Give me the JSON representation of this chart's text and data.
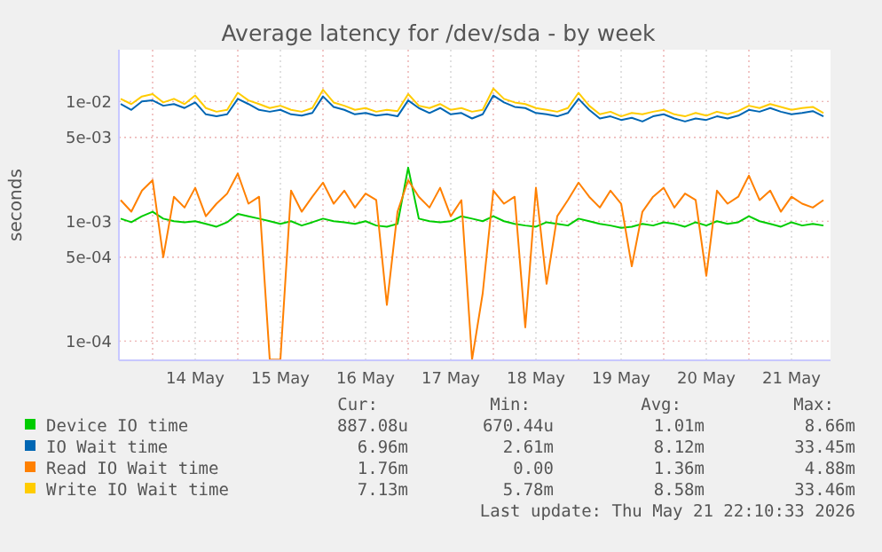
{
  "chart_data": {
    "type": "line",
    "title": "Average latency for /dev/sda - by week",
    "ylabel": "seconds",
    "log": "y",
    "grid": true,
    "legend": "bottom",
    "xlim": [
      "2026-05-13T14:30",
      "2026-05-21T23:00"
    ],
    "ylim": [
      6.9e-05,
      0.027
    ],
    "yticks": [
      {
        "value": 0.01,
        "label": "1e-02"
      },
      {
        "value": 0.005,
        "label": "5e-03"
      },
      {
        "value": 0.001,
        "label": "1e-03"
      },
      {
        "value": 0.0005,
        "label": "5e-04"
      },
      {
        "value": 0.0001,
        "label": "1e-04"
      }
    ],
    "xticks": [
      {
        "value": "2026-05-14T00:00",
        "label": null
      },
      {
        "value": "2026-05-14T12:00",
        "label": "14 May"
      },
      {
        "value": "2026-05-15T00:00",
        "label": null
      },
      {
        "value": "2026-05-15T12:00",
        "label": "15 May"
      },
      {
        "value": "2026-05-16T00:00",
        "label": null
      },
      {
        "value": "2026-05-16T12:00",
        "label": "16 May"
      },
      {
        "value": "2026-05-17T00:00",
        "label": null
      },
      {
        "value": "2026-05-17T12:00",
        "label": "17 May"
      },
      {
        "value": "2026-05-18T00:00",
        "label": null
      },
      {
        "value": "2026-05-18T12:00",
        "label": "18 May"
      },
      {
        "value": "2026-05-19T00:00",
        "label": null
      },
      {
        "value": "2026-05-19T12:00",
        "label": "19 May"
      },
      {
        "value": "2026-05-20T00:00",
        "label": null
      },
      {
        "value": "2026-05-20T12:00",
        "label": "20 May"
      },
      {
        "value": "2026-05-21T00:00",
        "label": null
      },
      {
        "value": "2026-05-21T12:00",
        "label": "21 May"
      }
    ],
    "x": [
      "2026-05-13T15:00",
      "2026-05-13T18:00",
      "2026-05-13T21:00",
      "2026-05-14T00:00",
      "2026-05-14T03:00",
      "2026-05-14T06:00",
      "2026-05-14T09:00",
      "2026-05-14T12:00",
      "2026-05-14T15:00",
      "2026-05-14T18:00",
      "2026-05-14T21:00",
      "2026-05-15T00:00",
      "2026-05-15T03:00",
      "2026-05-15T06:00",
      "2026-05-15T09:00",
      "2026-05-15T12:00",
      "2026-05-15T15:00",
      "2026-05-15T18:00",
      "2026-05-15T21:00",
      "2026-05-16T00:00",
      "2026-05-16T03:00",
      "2026-05-16T06:00",
      "2026-05-16T09:00",
      "2026-05-16T12:00",
      "2026-05-16T15:00",
      "2026-05-16T18:00",
      "2026-05-16T21:00",
      "2026-05-17T00:00",
      "2026-05-17T03:00",
      "2026-05-17T06:00",
      "2026-05-17T09:00",
      "2026-05-17T12:00",
      "2026-05-17T15:00",
      "2026-05-17T18:00",
      "2026-05-17T21:00",
      "2026-05-18T00:00",
      "2026-05-18T03:00",
      "2026-05-18T06:00",
      "2026-05-18T09:00",
      "2026-05-18T12:00",
      "2026-05-18T15:00",
      "2026-05-18T18:00",
      "2026-05-18T21:00",
      "2026-05-19T00:00",
      "2026-05-19T03:00",
      "2026-05-19T06:00",
      "2026-05-19T09:00",
      "2026-05-19T12:00",
      "2026-05-19T15:00",
      "2026-05-19T18:00",
      "2026-05-19T21:00",
      "2026-05-20T00:00",
      "2026-05-20T03:00",
      "2026-05-20T06:00",
      "2026-05-20T09:00",
      "2026-05-20T12:00",
      "2026-05-20T15:00",
      "2026-05-20T18:00",
      "2026-05-20T21:00",
      "2026-05-21T00:00",
      "2026-05-21T03:00",
      "2026-05-21T06:00",
      "2026-05-21T09:00",
      "2026-05-21T12:00",
      "2026-05-21T15:00",
      "2026-05-21T18:00",
      "2026-05-21T21:00"
    ],
    "series": [
      {
        "name": "Device IO time",
        "color": "#00cc00",
        "values": [
          0.00105,
          0.00098,
          0.0011,
          0.0012,
          0.00105,
          0.001,
          0.00098,
          0.001,
          0.00095,
          0.0009,
          0.00098,
          0.00115,
          0.0011,
          0.00105,
          0.001,
          0.00095,
          0.001,
          0.00092,
          0.00098,
          0.00105,
          0.001,
          0.00098,
          0.00095,
          0.001,
          0.00092,
          0.0009,
          0.00095,
          0.0028,
          0.00105,
          0.001,
          0.00098,
          0.001,
          0.0011,
          0.00105,
          0.001,
          0.0011,
          0.001,
          0.00095,
          0.00092,
          0.0009,
          0.00098,
          0.00095,
          0.00092,
          0.00105,
          0.001,
          0.00095,
          0.00092,
          0.00088,
          0.0009,
          0.00095,
          0.00092,
          0.00098,
          0.00095,
          0.0009,
          0.00098,
          0.00092,
          0.001,
          0.00095,
          0.00098,
          0.0011,
          0.001,
          0.00095,
          0.0009,
          0.00098,
          0.00092,
          0.00095,
          0.00092
        ]
      },
      {
        "name": "IO Wait time",
        "color": "#0066b3",
        "values": [
          0.0095,
          0.0085,
          0.01,
          0.0102,
          0.0092,
          0.0095,
          0.0088,
          0.0098,
          0.0078,
          0.0075,
          0.0078,
          0.0105,
          0.0095,
          0.0085,
          0.0082,
          0.0085,
          0.0078,
          0.0076,
          0.008,
          0.011,
          0.009,
          0.0085,
          0.0078,
          0.008,
          0.0076,
          0.0078,
          0.0075,
          0.0102,
          0.0088,
          0.008,
          0.0088,
          0.0078,
          0.008,
          0.0072,
          0.0078,
          0.0112,
          0.0098,
          0.009,
          0.0088,
          0.008,
          0.0078,
          0.0075,
          0.008,
          0.0105,
          0.0085,
          0.0072,
          0.0075,
          0.007,
          0.0073,
          0.0068,
          0.0075,
          0.0078,
          0.0072,
          0.0068,
          0.0072,
          0.007,
          0.0075,
          0.0072,
          0.0076,
          0.0085,
          0.0082,
          0.0088,
          0.0082,
          0.0078,
          0.008,
          0.0083,
          0.0075
        ]
      },
      {
        "name": "Read IO Wait time",
        "color": "#ff8000",
        "values": [
          0.0015,
          0.0012,
          0.0018,
          0.0022,
          0.0005,
          0.0016,
          0.0013,
          0.0019,
          0.0011,
          0.0014,
          0.0017,
          0.0025,
          0.0014,
          0.0016,
          7e-05,
          7e-05,
          0.0018,
          0.0012,
          0.0016,
          0.0021,
          0.0014,
          0.0018,
          0.0013,
          0.0017,
          0.0015,
          0.0002,
          0.0012,
          0.0022,
          0.0016,
          0.0013,
          0.0019,
          0.0011,
          0.0015,
          7e-05,
          0.00025,
          0.0018,
          0.0014,
          0.0016,
          0.00013,
          0.0019,
          0.0003,
          0.0011,
          0.0015,
          0.0021,
          0.0016,
          0.0013,
          0.0018,
          0.0014,
          0.00042,
          0.0012,
          0.0016,
          0.0019,
          0.0013,
          0.0017,
          0.0015,
          0.00035,
          0.0018,
          0.0014,
          0.0016,
          0.0024,
          0.0015,
          0.0018,
          0.0012,
          0.0016,
          0.0014,
          0.0013,
          0.0015
        ]
      },
      {
        "name": "Write IO Wait time",
        "color": "#ffcc00",
        "values": [
          0.0105,
          0.0095,
          0.011,
          0.0115,
          0.0098,
          0.0105,
          0.0095,
          0.0112,
          0.0088,
          0.0082,
          0.0085,
          0.0118,
          0.0102,
          0.0095,
          0.0088,
          0.0092,
          0.0085,
          0.0082,
          0.0088,
          0.0125,
          0.0098,
          0.0092,
          0.0085,
          0.0088,
          0.0082,
          0.0085,
          0.0083,
          0.0115,
          0.0092,
          0.0088,
          0.0095,
          0.0085,
          0.0088,
          0.0082,
          0.0085,
          0.0128,
          0.0105,
          0.0098,
          0.0095,
          0.0088,
          0.0085,
          0.0082,
          0.0088,
          0.0118,
          0.0092,
          0.0078,
          0.0082,
          0.0075,
          0.008,
          0.0078,
          0.0082,
          0.0085,
          0.0078,
          0.0075,
          0.008,
          0.0076,
          0.0082,
          0.0078,
          0.0083,
          0.0092,
          0.0088,
          0.0095,
          0.009,
          0.0085,
          0.0088,
          0.009,
          0.008
        ]
      }
    ],
    "annotations": [
      "Cur:",
      "Min:",
      "Avg:",
      "Max:",
      "887.08u",
      "670.44u",
      "1.01m",
      "8.66m",
      "6.96m",
      "2.61m",
      "8.12m",
      "33.45m",
      "1.76m",
      "0.00",
      "1.36m",
      "4.88m",
      "7.13m",
      "5.78m",
      "8.58m",
      "33.46m",
      "Last update: Thu May 21 22:10:33 2026"
    ]
  }
}
